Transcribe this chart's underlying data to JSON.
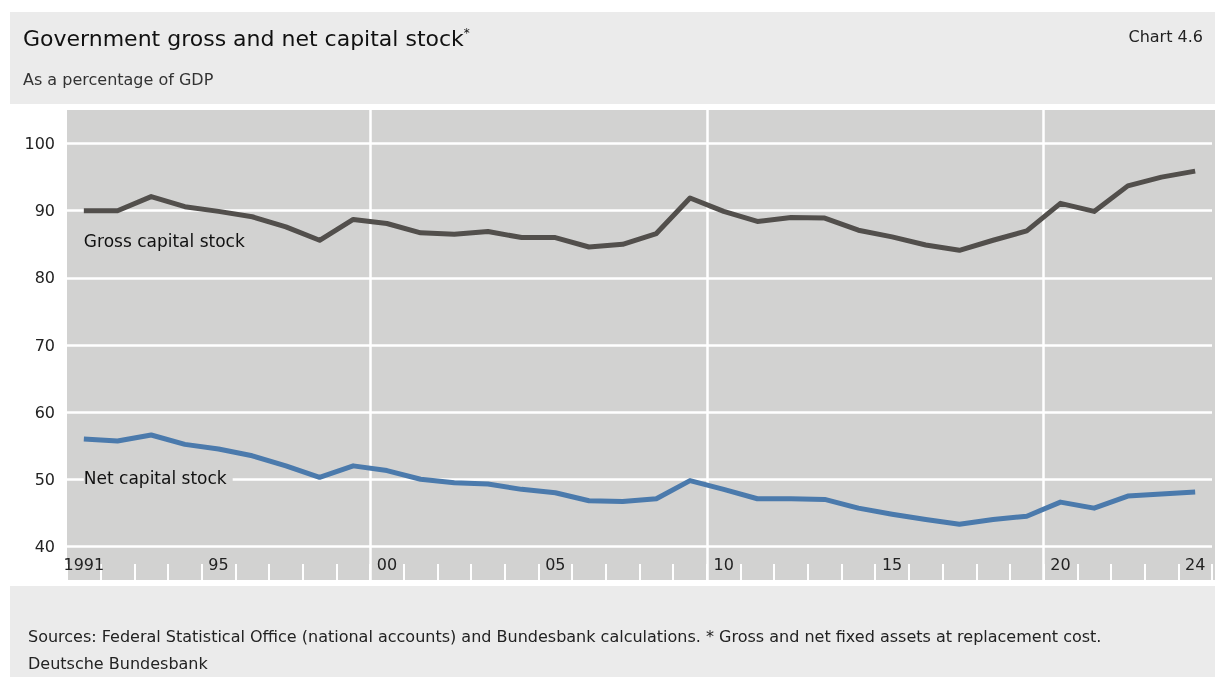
{
  "chart_data": {
    "type": "line",
    "title": "Government gross and net capital stock$^{*}$",
    "subtitle": "As a percentage of GDP",
    "annotations": [
      "Chart 4.6",
      "Sources: Federal Statistical Office (national accounts) and Bundesbank calculations. * Gross and net fixed assets at replacement cost.",
      "Deutsche Bundesbank"
    ],
    "x": [
      1991,
      1992,
      1993,
      1994,
      1995,
      1996,
      1997,
      1998,
      1999,
      2000,
      2001,
      2002,
      2003,
      2004,
      2005,
      2006,
      2007,
      2008,
      2009,
      2010,
      2011,
      2012,
      2013,
      2014,
      2015,
      2016,
      2017,
      2018,
      2019,
      2020,
      2021,
      2022,
      2023,
      2024
    ],
    "series": [
      {
        "name": "Gross capital stock",
        "color": "#524f4c",
        "values": [
          90.0,
          90.0,
          92.1,
          90.6,
          89.9,
          89.1,
          87.6,
          85.6,
          88.7,
          88.1,
          86.7,
          86.5,
          86.9,
          86.0,
          86.0,
          84.6,
          85.0,
          86.6,
          91.9,
          89.9,
          88.4,
          89.0,
          88.9,
          87.1,
          86.1,
          84.9,
          84.1,
          85.6,
          87.0,
          91.1,
          89.9,
          93.7,
          95.0,
          95.9
        ]
      },
      {
        "name": "Net capital stock",
        "color": "#4b7aac",
        "values": [
          56.0,
          55.7,
          56.6,
          55.2,
          54.5,
          53.5,
          52.0,
          50.3,
          52.0,
          51.3,
          50.0,
          49.5,
          49.3,
          48.5,
          48.0,
          46.8,
          46.7,
          47.1,
          49.8,
          48.5,
          47.1,
          47.1,
          47.0,
          45.7,
          44.8,
          44.0,
          43.3,
          44.0,
          44.5,
          46.6,
          45.7,
          47.5,
          47.8,
          48.1
        ]
      }
    ],
    "xlim": [
      1990.5,
      2024.5
    ],
    "xticks": [
      {
        "value": 1990.5,
        "label": null
      },
      {
        "value": 1991,
        "label": "1991"
      },
      {
        "value": 1991.5,
        "label": null
      },
      {
        "value": 1992.5,
        "label": null
      },
      {
        "value": 1993.5,
        "label": null
      },
      {
        "value": 1994.5,
        "label": null
      },
      {
        "value": 1995,
        "label": "95"
      },
      {
        "value": 1995.5,
        "label": null
      },
      {
        "value": 1996.5,
        "label": null
      },
      {
        "value": 1997.5,
        "label": null
      },
      {
        "value": 1998.5,
        "label": null
      },
      {
        "value": 1999.5,
        "label": null
      },
      {
        "value": 2000,
        "label": "00"
      },
      {
        "value": 2000.5,
        "label": null
      },
      {
        "value": 2001.5,
        "label": null
      },
      {
        "value": 2002.5,
        "label": null
      },
      {
        "value": 2003.5,
        "label": null
      },
      {
        "value": 2004.5,
        "label": null
      },
      {
        "value": 2005,
        "label": "05"
      },
      {
        "value": 2005.5,
        "label": null
      },
      {
        "value": 2006.5,
        "label": null
      },
      {
        "value": 2007.5,
        "label": null
      },
      {
        "value": 2008.5,
        "label": null
      },
      {
        "value": 2009.5,
        "label": null
      },
      {
        "value": 2010,
        "label": "10"
      },
      {
        "value": 2010.5,
        "label": null
      },
      {
        "value": 2011.5,
        "label": null
      },
      {
        "value": 2012.5,
        "label": null
      },
      {
        "value": 2013.5,
        "label": null
      },
      {
        "value": 2014.5,
        "label": null
      },
      {
        "value": 2015,
        "label": "15"
      },
      {
        "value": 2015.5,
        "label": null
      },
      {
        "value": 2016.5,
        "label": null
      },
      {
        "value": 2017.5,
        "label": null
      },
      {
        "value": 2018.5,
        "label": null
      },
      {
        "value": 2019.5,
        "label": null
      },
      {
        "value": 2020,
        "label": "20"
      },
      {
        "value": 2020.5,
        "label": null
      },
      {
        "value": 2021.5,
        "label": null
      },
      {
        "value": 2022.5,
        "label": null
      },
      {
        "value": 2023.5,
        "label": null
      },
      {
        "value": 2024,
        "label": "24"
      },
      {
        "value": 2024.5,
        "label": null
      }
    ],
    "ylim": [
      35,
      105
    ],
    "yticks": [
      40,
      50,
      60,
      70,
      80,
      90,
      100
    ],
    "ref_lines": [
      {
        "axis": "x",
        "value": 1999.5,
        "color": "#ffffff"
      },
      {
        "axis": "x",
        "value": 2009.5,
        "color": "#ffffff"
      },
      {
        "axis": "x",
        "value": 2019.5,
        "color": "#ffffff"
      }
    ],
    "grid": "y",
    "legend": false,
    "marker": "none",
    "line_style": "solid"
  }
}
